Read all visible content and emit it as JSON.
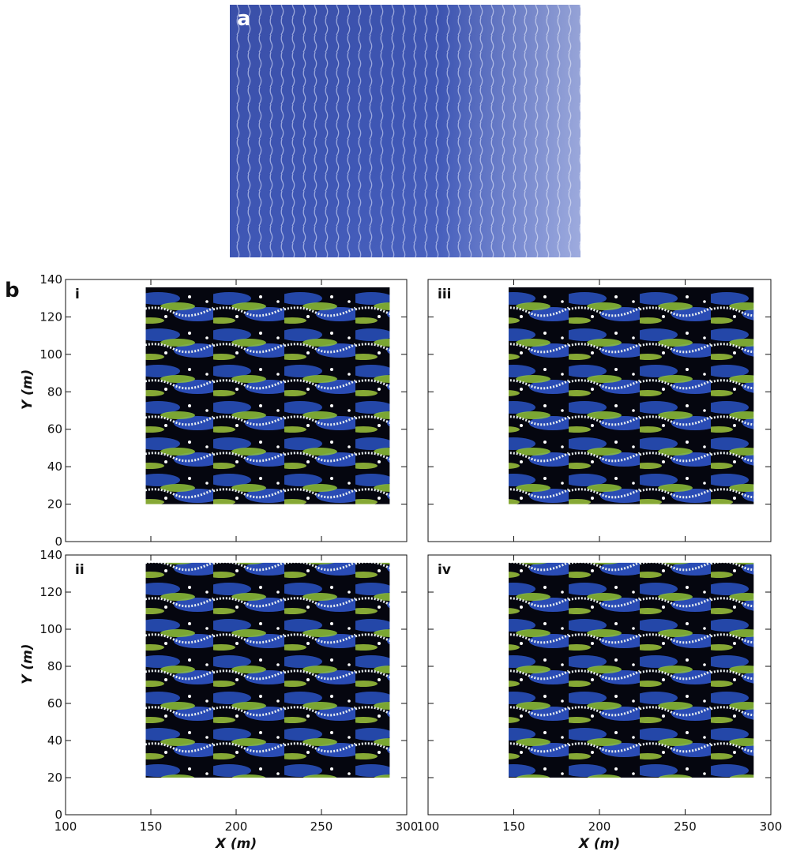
{
  "panel_a": {
    "label": "a"
  },
  "panel_b": {
    "label": "b",
    "x_label": "X (m)",
    "y_label": "Y (m)",
    "x_range": [
      100,
      300
    ],
    "y_range": [
      0,
      140
    ],
    "x_ticks": [
      100,
      150,
      200,
      250,
      300
    ],
    "y_ticks": [
      0,
      20,
      40,
      60,
      80,
      100,
      120,
      140
    ],
    "subpanels": [
      {
        "label": "i"
      },
      {
        "label": "iii"
      },
      {
        "label": "ii"
      },
      {
        "label": "iv"
      }
    ]
  }
}
